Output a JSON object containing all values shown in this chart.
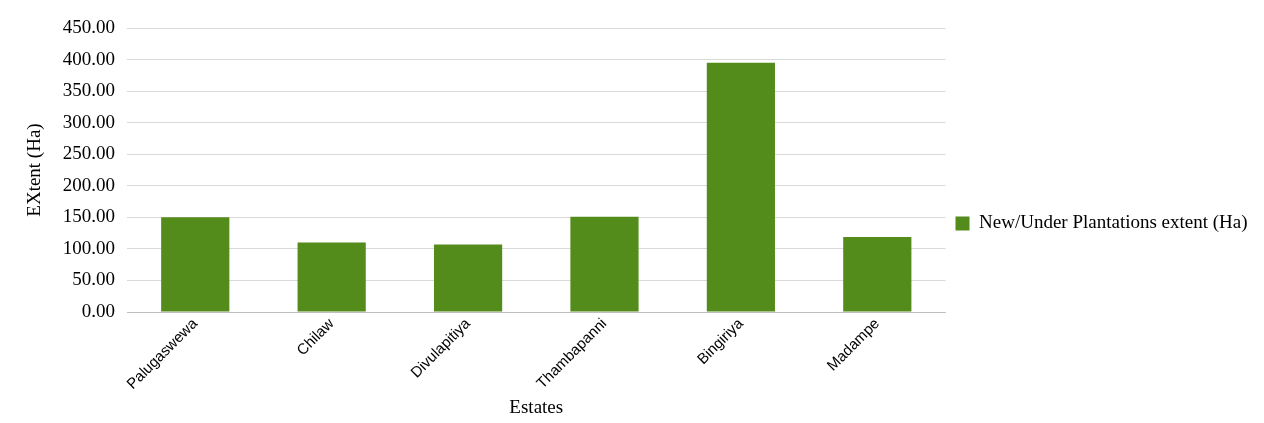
{
  "chart_data": {
    "type": "bar",
    "xlabel": "Estates",
    "ylabel": "EXtent (Ha)",
    "categories": [
      "Palugaswewa",
      "Chilaw",
      "Divulapitiya",
      "Thambapanni",
      "Bingiriya",
      "Madampe"
    ],
    "series": [
      {
        "name": "New/Under Plantations extent (Ha)",
        "color": "#548c1c",
        "values": [
          150,
          110,
          107,
          151,
          395,
          119
        ]
      }
    ],
    "ylim": [
      0,
      450
    ],
    "yticks": [
      {
        "value": 0,
        "label": "0.00"
      },
      {
        "value": 50,
        "label": "50.00"
      },
      {
        "value": 100,
        "label": "100.00"
      },
      {
        "value": 150,
        "label": "150.00"
      },
      {
        "value": 200,
        "label": "200.00"
      },
      {
        "value": 250,
        "label": "250.00"
      },
      {
        "value": 300,
        "label": "300.00"
      },
      {
        "value": 350,
        "label": "350.00"
      },
      {
        "value": 400,
        "label": "400.00"
      },
      {
        "value": 450,
        "label": "450.00"
      }
    ],
    "grid": "y",
    "legend": "right"
  }
}
